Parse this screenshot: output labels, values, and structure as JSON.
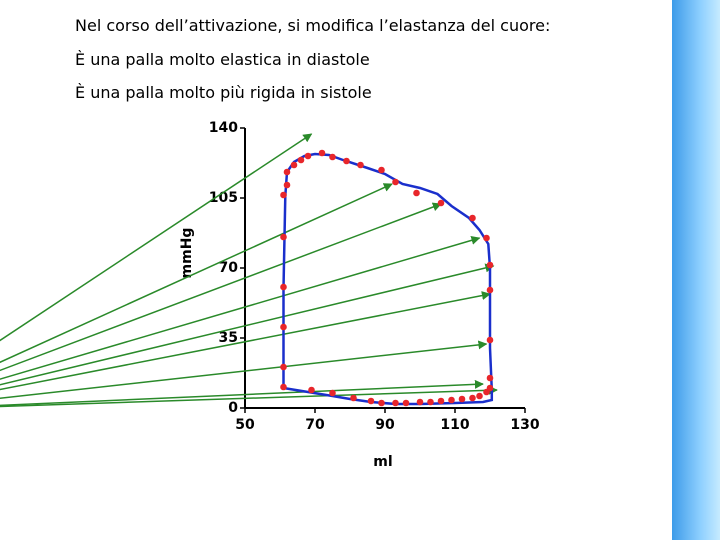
{
  "slide": {
    "lines": [
      "Nel corso dell’attivazione, si modifica l’elastanza del cuore:",
      "È una palla molto elastica in diastole",
      "È una palla molto più rigida in sistole"
    ]
  },
  "chart_data": {
    "type": "pv-loop",
    "xlabel": "ml",
    "ylabel": "mmHg",
    "xlim": [
      50,
      130
    ],
    "ylim": [
      0,
      140
    ],
    "xticks": [
      50,
      70,
      90,
      110,
      130
    ],
    "yticks": [
      0,
      35,
      70,
      105,
      140
    ],
    "loop": {
      "color": "#1a2fcc",
      "x": [
        61,
        61,
        61.5,
        62,
        64,
        67,
        70,
        74,
        78,
        85,
        90,
        95,
        100,
        105,
        109,
        114,
        117,
        119.5,
        120,
        120,
        120.5,
        120.5,
        118,
        110,
        100,
        93,
        86,
        80,
        75,
        68,
        61
      ],
      "y": [
        10,
        60,
        106,
        118,
        123,
        126,
        127,
        126.5,
        124,
        120,
        117,
        112,
        110,
        107,
        101,
        95,
        89,
        82,
        70,
        30,
        9,
        4,
        3,
        2.5,
        2,
        2,
        3,
        4.5,
        6,
        8,
        10
      ]
    },
    "points": {
      "color": "#e8262b",
      "x": [
        61,
        61,
        61,
        61,
        61,
        61,
        62,
        62,
        64,
        66,
        68,
        72,
        75,
        79,
        83,
        89,
        93,
        99,
        106,
        115,
        119,
        120,
        120,
        120,
        120,
        69,
        75,
        81,
        86,
        89,
        93,
        96,
        100,
        103,
        106,
        109,
        112,
        115,
        117,
        119,
        120
      ],
      "y": [
        10.5,
        20.5,
        40.5,
        60.5,
        85.5,
        106.5,
        111.5,
        118,
        121.5,
        124,
        126,
        127.5,
        125.5,
        123.5,
        121.5,
        119,
        113,
        107.5,
        102.5,
        95,
        85,
        71.5,
        59,
        34,
        15,
        9,
        7.5,
        5,
        3.5,
        2.5,
        2.5,
        2.5,
        3,
        3,
        3.5,
        4,
        4.5,
        5,
        6,
        8,
        10
      ]
    },
    "arrows": {
      "color": "#2a8a2a",
      "origin_x": -50,
      "origin_y": -1,
      "x": [
        69,
        92,
        106,
        117,
        121,
        120,
        119,
        118,
        122
      ],
      "y": [
        137,
        112,
        102,
        85,
        71,
        57,
        32,
        12,
        9
      ]
    }
  }
}
